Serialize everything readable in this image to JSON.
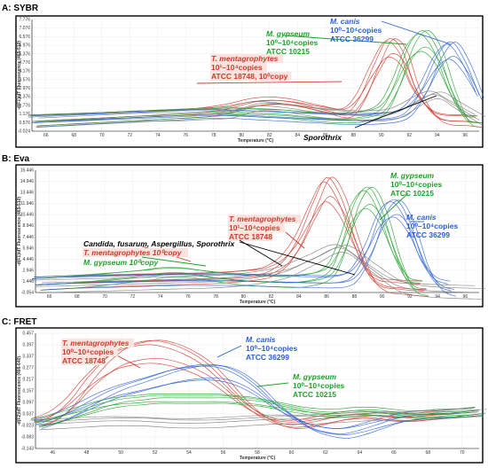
{
  "colors": {
    "red": "#d03a2c",
    "green": "#1fa22a",
    "blue": "#2a5fd6",
    "gray": "#7a7a7a",
    "frame": "#000"
  },
  "chart_data": [
    {
      "type": "line",
      "panel_label": "A: SYBR",
      "xlabel": "Temperature (°C)",
      "ylabel": "-d(F1)/dT Fluorescence (465-510)",
      "x_ticks": [
        "66",
        "68",
        "70",
        "72",
        "74",
        "76",
        "78",
        "80",
        "82",
        "84",
        "86",
        "88",
        "90",
        "92",
        "94",
        "96"
      ],
      "y_ticks": [
        "7.776",
        "7.076",
        "6.576",
        "5.976",
        "5.376",
        "4.776",
        "4.176",
        "3.576",
        "2.976",
        "2.376",
        "1.776",
        "1.176",
        "0.576",
        "-0.024"
      ],
      "xlim": [
        65,
        97
      ],
      "ylim": [
        0,
        8
      ],
      "series": [
        {
          "color": "red",
          "label_index": 0,
          "x": [
            65,
            67,
            69,
            71,
            73,
            75,
            77,
            79,
            81,
            82.5,
            84,
            86,
            87.5,
            88.5,
            89.5,
            90.5,
            91.5,
            92.5,
            94,
            96,
            97
          ],
          "y": [
            0.7,
            0.8,
            0.9,
            1.0,
            1.1,
            1.2,
            1.3,
            1.6,
            2.1,
            2.2,
            2.0,
            1.5,
            1.3,
            2.5,
            4.8,
            6.6,
            5.8,
            3.0,
            1.0,
            0.7,
            0.6
          ]
        },
        {
          "color": "green",
          "label_index": 1,
          "x": [
            65,
            67,
            69,
            71,
            73,
            75,
            77,
            79,
            81,
            83,
            85,
            87,
            88.5,
            90,
            91,
            92,
            93,
            94,
            95,
            96,
            97
          ],
          "y": [
            0.7,
            0.8,
            0.9,
            1.0,
            1.1,
            1.2,
            1.3,
            1.4,
            1.3,
            1.2,
            1.0,
            0.9,
            1.0,
            1.6,
            3.5,
            6.2,
            7.2,
            5.9,
            3.0,
            0.9,
            0.6
          ]
        },
        {
          "color": "blue",
          "label_index": 2,
          "x": [
            65,
            67,
            69,
            71,
            73,
            75,
            77,
            79,
            81,
            83,
            85,
            87,
            89,
            91,
            92,
            93,
            94,
            95,
            96,
            97
          ],
          "y": [
            0.6,
            0.7,
            0.8,
            0.9,
            1.0,
            1.1,
            1.2,
            1.2,
            1.1,
            1.0,
            0.9,
            0.8,
            0.8,
            1.0,
            1.6,
            3.2,
            5.4,
            6.4,
            5.0,
            2.6
          ]
        },
        {
          "color": "gray",
          "label_index": 3,
          "x": [
            65,
            67,
            69,
            71,
            73,
            75,
            77,
            79,
            81,
            83,
            85,
            87,
            89,
            91,
            93,
            94,
            95,
            97
          ],
          "y": [
            0.7,
            0.8,
            0.9,
            1.0,
            1.1,
            1.1,
            1.2,
            1.3,
            1.8,
            1.7,
            1.4,
            1.2,
            1.1,
            1.3,
            2.4,
            2.6,
            2.0,
            0.8
          ]
        }
      ],
      "labels": [
        {
          "color": "red",
          "lines": [
            {
              "t": "T. mentagrophytes",
              "b": true
            },
            {
              "t": "10¹–10⁴copies"
            },
            {
              "t": "ATCC 18748, 10⁰copy"
            }
          ]
        },
        {
          "color": "green",
          "lines": [
            {
              "t": "M. gypseum",
              "b": true
            },
            {
              "t": "10⁰–10⁴copies"
            },
            {
              "t": "ATCC 10215"
            }
          ]
        },
        {
          "color": "blue",
          "lines": [
            {
              "t": "M. canis",
              "b": true
            },
            {
              "t": "10⁰–10⁴copies"
            },
            {
              "t": "ATCC 36299"
            }
          ]
        },
        {
          "color": "black",
          "lines": [
            {
              "t": "Sporothrix",
              "b": true
            }
          ]
        }
      ]
    },
    {
      "type": "line",
      "panel_label": "B: Eva",
      "xlabel": "Temperature (°C)",
      "ylabel": "-d(F1)/dT Fluorescence (465-510)",
      "x_ticks": [
        "66",
        "68",
        "70",
        "72",
        "74",
        "76",
        "78",
        "80",
        "82",
        "84",
        "86",
        "88",
        "90",
        "92",
        "94",
        "96"
      ],
      "y_ticks": [
        "16.446",
        "14.946",
        "13.446",
        "11.946",
        "10.446",
        "8.946",
        "7.446",
        "5.946",
        "4.446",
        "2.946",
        "1.446",
        "-0.054"
      ],
      "xlim": [
        65,
        97
      ],
      "ylim": [
        0,
        16.5
      ],
      "series": [
        {
          "color": "red",
          "label_index": 0,
          "x": [
            65,
            67,
            69,
            71,
            73,
            75,
            77,
            79,
            81,
            82,
            83,
            84,
            85,
            86,
            87,
            88,
            89,
            90,
            91,
            92,
            93
          ],
          "y": [
            1.0,
            1.2,
            1.4,
            1.5,
            1.6,
            1.7,
            1.8,
            2.0,
            2.4,
            3.0,
            4.5,
            7.5,
            12.0,
            15.5,
            13.0,
            7.5,
            2.5,
            0.8,
            0.5,
            0.3,
            0.2
          ]
        },
        {
          "color": "green",
          "label_index": 1,
          "x": [
            65,
            67,
            69,
            71,
            73,
            74,
            75,
            76,
            77,
            78,
            79,
            80,
            82,
            84,
            86,
            87,
            88,
            89,
            90,
            91,
            92,
            93
          ],
          "y": [
            1.0,
            1.2,
            1.5,
            1.9,
            2.3,
            2.6,
            2.7,
            2.6,
            2.3,
            2.0,
            1.8,
            1.6,
            1.4,
            1.4,
            2.5,
            6.0,
            12.0,
            14.2,
            11.0,
            5.0,
            1.0,
            0.3
          ]
        },
        {
          "color": "blue",
          "label_index": 2,
          "x": [
            65,
            67,
            69,
            71,
            73,
            75,
            77,
            79,
            81,
            83,
            85,
            87,
            88,
            89,
            90,
            91,
            92,
            93,
            94,
            95
          ],
          "y": [
            1.0,
            1.2,
            1.3,
            1.4,
            1.5,
            1.6,
            1.6,
            1.6,
            1.5,
            1.4,
            1.3,
            1.4,
            2.5,
            6.0,
            11.0,
            12.5,
            9.5,
            4.0,
            1.0,
            0.2
          ]
        },
        {
          "color": "gray",
          "label_index": 3,
          "x": [
            65,
            67,
            69,
            71,
            73,
            75,
            77,
            79,
            81,
            83,
            85,
            87,
            89,
            91,
            93,
            95,
            97
          ],
          "y": [
            0.8,
            0.9,
            1.0,
            1.1,
            1.2,
            1.3,
            1.4,
            1.6,
            2.0,
            2.8,
            4.5,
            6.0,
            3.5,
            1.0,
            0.3,
            0.1,
            0.0
          ]
        }
      ],
      "labels": [
        {
          "color": "red",
          "lines": [
            {
              "t": "T. mentagrophytes",
              "b": true
            },
            {
              "t": "10¹–10⁴copies"
            },
            {
              "t": "ATCC 18748"
            }
          ]
        },
        {
          "color": "green",
          "lines": [
            {
              "t": "M. gypseum",
              "b": true
            },
            {
              "t": "10⁰–10⁴copies"
            },
            {
              "t": "ATCC 10215"
            }
          ]
        },
        {
          "color": "blue",
          "lines": [
            {
              "t": "M. canis",
              "b": true
            },
            {
              "t": "10⁰–10⁴copies"
            },
            {
              "t": "ATCC 36299"
            }
          ]
        },
        {
          "color": "black",
          "lines": [
            {
              "t": "Candida, fusarum, Aspergillus, Sporothrix",
              "b": true
            }
          ]
        },
        {
          "color": "red",
          "lines": [
            {
              "t": "T. mentagrophytes 10⁰copy",
              "mix": true
            }
          ]
        },
        {
          "color": "green",
          "lines": [
            {
              "t": "M. gypseum 10⁰copy",
              "mix": true
            }
          ]
        }
      ]
    },
    {
      "type": "line",
      "panel_label": "C: FRET",
      "xlabel": "Temperature (°C)",
      "ylabel": "-d(F2)/dT Fluorescence (498-640)",
      "x_ticks": [
        "46",
        "48",
        "50",
        "52",
        "54",
        "56",
        "58",
        "60",
        "62",
        "64",
        "66",
        "68",
        "70"
      ],
      "y_ticks": [
        "0.457",
        "0.397",
        "0.337",
        "0.277",
        "0.217",
        "0.157",
        "0.097",
        "0.037",
        "-0.023",
        "-0.083",
        "-0.143"
      ],
      "xlim": [
        45,
        71
      ],
      "ylim": [
        -0.16,
        0.47
      ],
      "series": [
        {
          "color": "red",
          "label_index": 0,
          "x": [
            45,
            46,
            47,
            48,
            49,
            50,
            51,
            52,
            53,
            54,
            55,
            56,
            57,
            58,
            59,
            60,
            61,
            62,
            63,
            64,
            65,
            66,
            67,
            68,
            69,
            70,
            71
          ],
          "y": [
            -0.02,
            0.02,
            0.1,
            0.22,
            0.32,
            0.39,
            0.42,
            0.43,
            0.41,
            0.37,
            0.31,
            0.22,
            0.12,
            0.04,
            -0.01,
            -0.03,
            -0.02,
            0.0,
            0.02,
            0.03,
            0.02,
            0.01,
            0.01,
            0.02,
            0.03,
            0.04,
            0.05
          ]
        },
        {
          "color": "blue",
          "label_index": 1,
          "x": [
            45,
            46,
            47,
            48,
            49,
            50,
            51,
            52,
            53,
            54,
            55,
            56,
            57,
            58,
            59,
            60,
            61,
            62,
            63,
            64,
            65,
            66,
            67,
            68,
            69,
            70,
            71
          ],
          "y": [
            -0.03,
            0.0,
            0.04,
            0.09,
            0.14,
            0.18,
            0.21,
            0.24,
            0.27,
            0.29,
            0.3,
            0.29,
            0.25,
            0.18,
            0.09,
            0.02,
            -0.04,
            -0.07,
            -0.08,
            -0.06,
            -0.03,
            0.0,
            0.02,
            0.03,
            0.03,
            0.04,
            0.05
          ]
        },
        {
          "color": "green",
          "label_index": 2,
          "x": [
            45,
            46,
            47,
            48,
            49,
            50,
            51,
            52,
            53,
            54,
            55,
            56,
            57,
            58,
            59,
            60,
            61,
            62,
            63,
            64,
            65,
            66,
            67,
            68,
            69,
            70,
            71
          ],
          "y": [
            -0.02,
            0.0,
            0.03,
            0.06,
            0.09,
            0.11,
            0.12,
            0.13,
            0.13,
            0.13,
            0.13,
            0.13,
            0.12,
            0.11,
            0.09,
            0.07,
            0.05,
            0.04,
            0.04,
            0.05,
            0.05,
            0.04,
            0.03,
            0.03,
            0.04,
            0.04,
            0.05
          ]
        },
        {
          "color": "gray",
          "label_index": 3,
          "x": [
            45,
            47,
            49,
            51,
            53,
            55,
            57,
            59,
            61,
            63,
            65,
            67,
            69,
            71
          ],
          "y": [
            -0.03,
            -0.02,
            -0.01,
            -0.01,
            -0.02,
            -0.02,
            -0.01,
            0.0,
            0.0,
            0.01,
            0.02,
            0.02,
            0.03,
            0.04
          ]
        }
      ],
      "labels": [
        {
          "color": "red",
          "lines": [
            {
              "t": "T. mentagrophytes",
              "b": true
            },
            {
              "t": "10⁰–10⁴copies"
            },
            {
              "t": "ATCC 18748"
            }
          ]
        },
        {
          "color": "blue",
          "lines": [
            {
              "t": "M. canis",
              "b": true
            },
            {
              "t": "10⁰–10⁴copies"
            },
            {
              "t": "ATCC 36299"
            }
          ]
        },
        {
          "color": "green",
          "lines": [
            {
              "t": "M. gypseum",
              "b": true
            },
            {
              "t": "10⁰–10⁴copies"
            },
            {
              "t": "ATCC 10215"
            }
          ]
        }
      ]
    }
  ]
}
